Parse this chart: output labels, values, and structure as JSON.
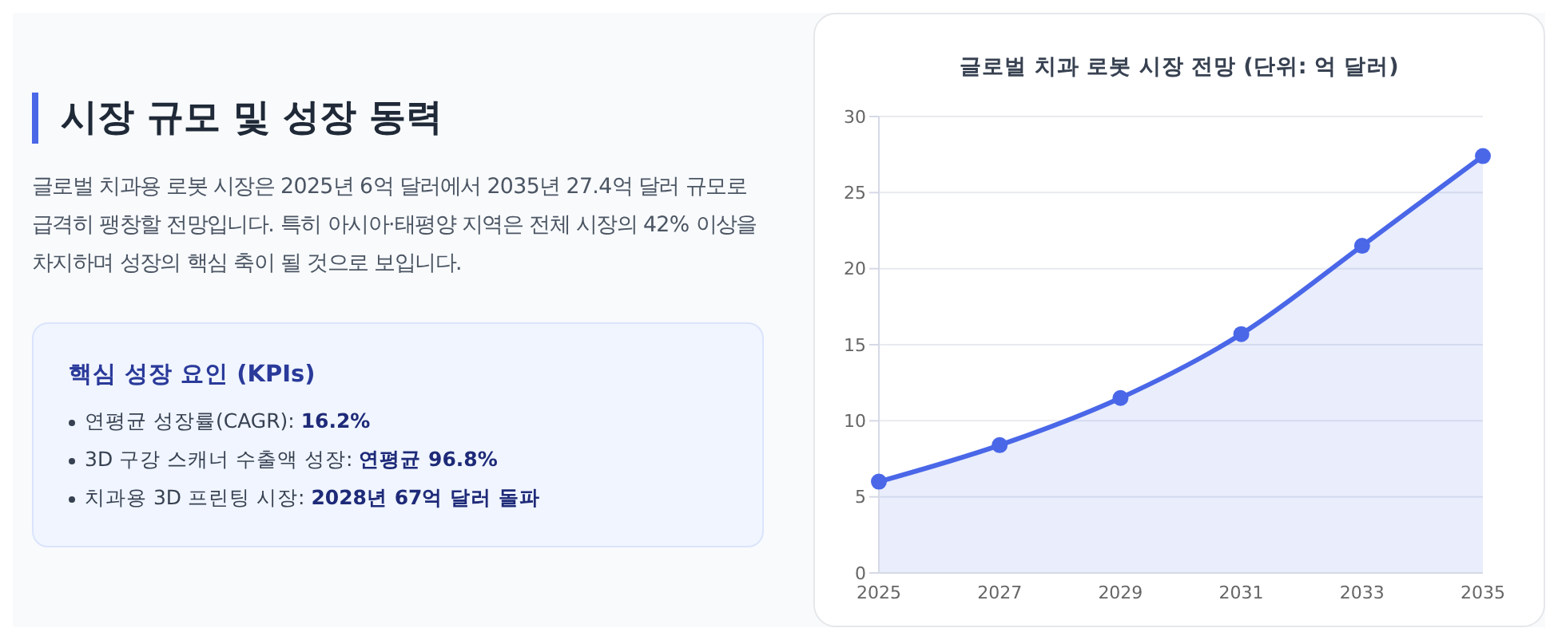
{
  "chart_data": [
    {
      "type": "other",
      "title": "시장 규모 및 성장 동력",
      "subtitle": "글로벌 치과용 로봇 시장은 2025년 6억 달러에서 2035년 27.4억 달러 규모로 급격히 팽창할 전망입니다. 특히 아시아·태평양 지역은 전체 시장의 42% 이상을 차지하며 성장의 핵심 축이 될 것으로 보입니다.",
      "annotations": [
        "핵심 성장 요인 (KPIs)",
        "연평균 성장률(CAGR): 16.2%",
        "3D 구강 스캐너 수출액 성장: 연평균 96.8%",
        "치과용 3D 프린팅 시장: 2028년 67억 달러 돌파"
      ]
    },
    {
      "type": "area",
      "title": "글로벌 치과 로봇 시장 전망 (단위: 억 달러)",
      "categories": [
        "2025",
        "2027",
        "2029",
        "2031",
        "2033",
        "2035"
      ],
      "series": [
        {
          "color": "#4a67e8",
          "values": [
            6,
            8.4,
            11.5,
            15.7,
            21.5,
            27.4
          ]
        }
      ],
      "ylim": [
        0,
        30
      ],
      "yticks": [
        0,
        5,
        10,
        15,
        20,
        25,
        30
      ],
      "grid": "y",
      "legend": false,
      "marker": "circle",
      "line_style": "solid"
    }
  ]
}
